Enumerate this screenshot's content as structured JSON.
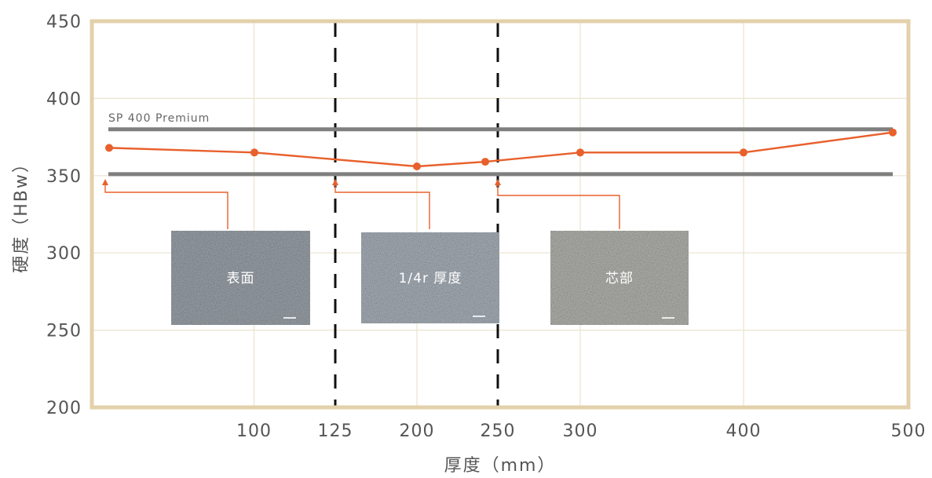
{
  "chart_data": {
    "type": "line",
    "xlabel": "厚度（mm）",
    "ylabel": "硬度（HBw）",
    "ylim": [
      200,
      450
    ],
    "yticks": [
      "200",
      "250",
      "300",
      "350",
      "400",
      "450"
    ],
    "xticks": [
      "100",
      "125",
      "200",
      "250",
      "300",
      "400",
      "500"
    ],
    "grid": true,
    "series": [
      {
        "x_positions": [
          0,
          1,
          2,
          2.4,
          3,
          4,
          4.95
        ],
        "values": [
          368,
          365,
          356,
          359,
          365,
          365,
          378
        ],
        "color": "#e8602c"
      }
    ],
    "reference_lines": [
      {
        "label": "SP 400 Premium",
        "value": 380,
        "color": "#7f7f7f"
      },
      {
        "label": "",
        "value": 351,
        "color": "#7f7f7f"
      }
    ],
    "dashed_lines_at": [
      "125",
      "250"
    ],
    "samples": [
      {
        "label": "表面"
      },
      {
        "label": "1/4r 厚度"
      },
      {
        "label": "芯部"
      }
    ],
    "colors": {
      "frame": "#e3d1ab",
      "grid": "#ece3cf",
      "series": "#e8602c",
      "reference": "#7f7f7f",
      "dashed": "#111111",
      "text": "#555555"
    }
  }
}
